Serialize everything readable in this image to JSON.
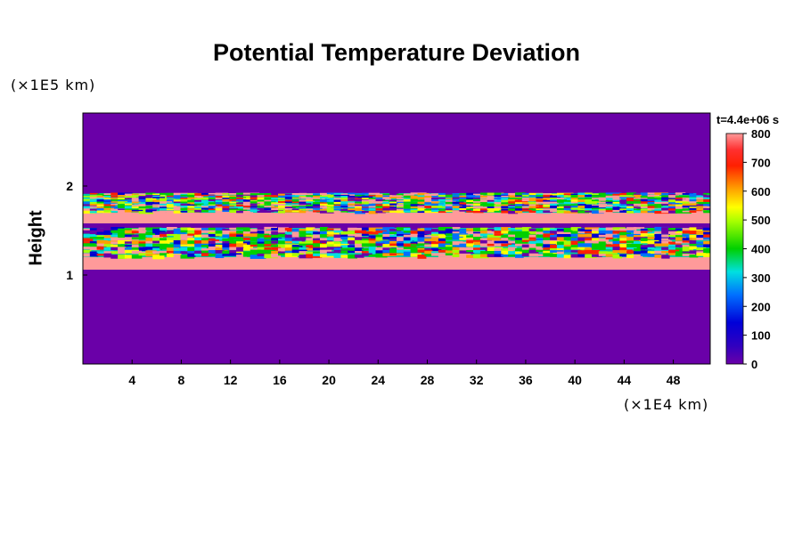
{
  "chart_data": {
    "type": "heatmap",
    "title": "Potential Temperature Deviation",
    "ylabel": "Height",
    "xlabel": "",
    "y_unit": "(×1E5 km)",
    "x_unit": "(×1E4 km)",
    "time_label": "t=4.4e+06 s",
    "xlim": [
      0,
      51
    ],
    "ylim": [
      0,
      2.82
    ],
    "x_ticks": [
      "4",
      "8",
      "12",
      "16",
      "20",
      "24",
      "28",
      "32",
      "36",
      "40",
      "44",
      "48"
    ],
    "y_ticks": [
      "1",
      "2"
    ],
    "colorbar": {
      "range": [
        0,
        800
      ],
      "ticks": [
        "0",
        "100",
        "200",
        "300",
        "400",
        "500",
        "600",
        "700",
        "800"
      ],
      "colors": [
        "#6a00a8",
        "#0000d0",
        "#0070ff",
        "#00e0e0",
        "#00d000",
        "#a8ff00",
        "#ffff00",
        "#ffa000",
        "#ff2000",
        "#ff9a9a"
      ]
    },
    "background_value": 0,
    "bands": [
      {
        "y_bottom": 1.06,
        "y_top": 1.2,
        "value": 800
      },
      {
        "y_bottom": 1.2,
        "y_top": 1.53,
        "value": "mixed"
      },
      {
        "y_bottom": 1.58,
        "y_top": 1.7,
        "value": 800
      },
      {
        "y_bottom": 1.7,
        "y_top": 1.92,
        "value": "mixed"
      }
    ]
  }
}
